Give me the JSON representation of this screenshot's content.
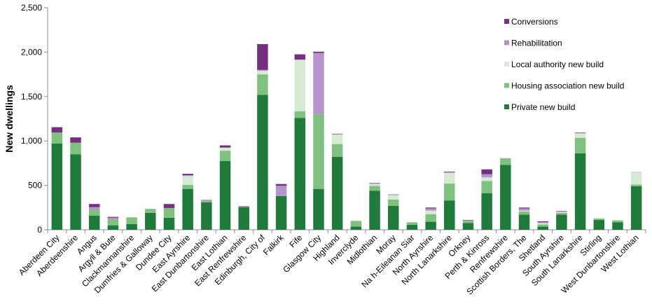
{
  "chart_data": {
    "type": "bar",
    "stacked": true,
    "ylabel": "New dwellings",
    "ylim": [
      0,
      2500
    ],
    "yticks": [
      0,
      500,
      1000,
      1500,
      2000,
      2500
    ],
    "ytick_labels": [
      "0",
      "500",
      "1,000",
      "1,500",
      "2,000",
      "2,500"
    ],
    "grid": false,
    "legend_position": "top-right",
    "categories": [
      "Aberdeen City",
      "Aberdeenshire",
      "Angus",
      "Argyll & Bute",
      "Clackmannanshire",
      "Dumfries & Galloway",
      "Dundee City",
      "East Ayrshire",
      "East Dunbartonshire",
      "East Lothian",
      "East Renfrewshire",
      "Edinburgh, City of",
      "Falkirk",
      "Fife",
      "Glasgow City",
      "Highland",
      "Inverclyde",
      "Midlothian",
      "Moray",
      "Na h-Eileanan Siar",
      "North Ayrshire",
      "North Lanarkshire",
      "Orkney",
      "Perth & Kinross",
      "Renfrewshire",
      "Scottish Borders, The",
      "Shetland",
      "South Ayrshire",
      "South Lanarkshire",
      "Stirling",
      "West Dunbartonshire",
      "West Lothian"
    ],
    "series": [
      {
        "name": "Private new build",
        "color": "#1e7b3a",
        "values": [
          970,
          850,
          160,
          50,
          65,
          190,
          135,
          460,
          310,
          775,
          255,
          1520,
          380,
          1260,
          460,
          820,
          35,
          440,
          270,
          55,
          90,
          330,
          75,
          410,
          730,
          170,
          35,
          170,
          860,
          110,
          85,
          490
        ]
      },
      {
        "name": "Housing association new build",
        "color": "#7fc27f",
        "values": [
          125,
          130,
          65,
          65,
          75,
          45,
          110,
          45,
          15,
          115,
          5,
          230,
          0,
          75,
          840,
          145,
          65,
          55,
          70,
          25,
          85,
          190,
          25,
          140,
          75,
          35,
          25,
          20,
          175,
          15,
          20,
          20
        ]
      },
      {
        "name": "Local authority new build",
        "color": "#d6ecd2",
        "values": [
          0,
          0,
          0,
          0,
          0,
          0,
          0,
          100,
          0,
          35,
          0,
          40,
          0,
          580,
          0,
          110,
          0,
          20,
          50,
          0,
          40,
          120,
          0,
          40,
          0,
          10,
          15,
          10,
          50,
          10,
          5,
          135
        ]
      },
      {
        "name": "Rehabilitation",
        "color": "#b594cb",
        "values": [
          0,
          0,
          30,
          20,
          0,
          0,
          0,
          10,
          5,
          0,
          0,
          10,
          115,
          0,
          690,
          0,
          0,
          5,
          10,
          5,
          25,
          10,
          5,
          35,
          0,
          25,
          10,
          5,
          5,
          0,
          0,
          5
        ]
      },
      {
        "name": "Conversions",
        "color": "#762f7f",
        "values": [
          60,
          60,
          35,
          10,
          0,
          0,
          45,
          15,
          5,
          25,
          5,
          290,
          20,
          60,
          15,
          5,
          0,
          5,
          0,
          0,
          10,
          5,
          5,
          55,
          0,
          10,
          10,
          5,
          5,
          0,
          0,
          0
        ]
      }
    ],
    "legend_order": [
      "Conversions",
      "Rehabilitation",
      "Local authority new build",
      "Housing association new build",
      "Private new build"
    ]
  }
}
